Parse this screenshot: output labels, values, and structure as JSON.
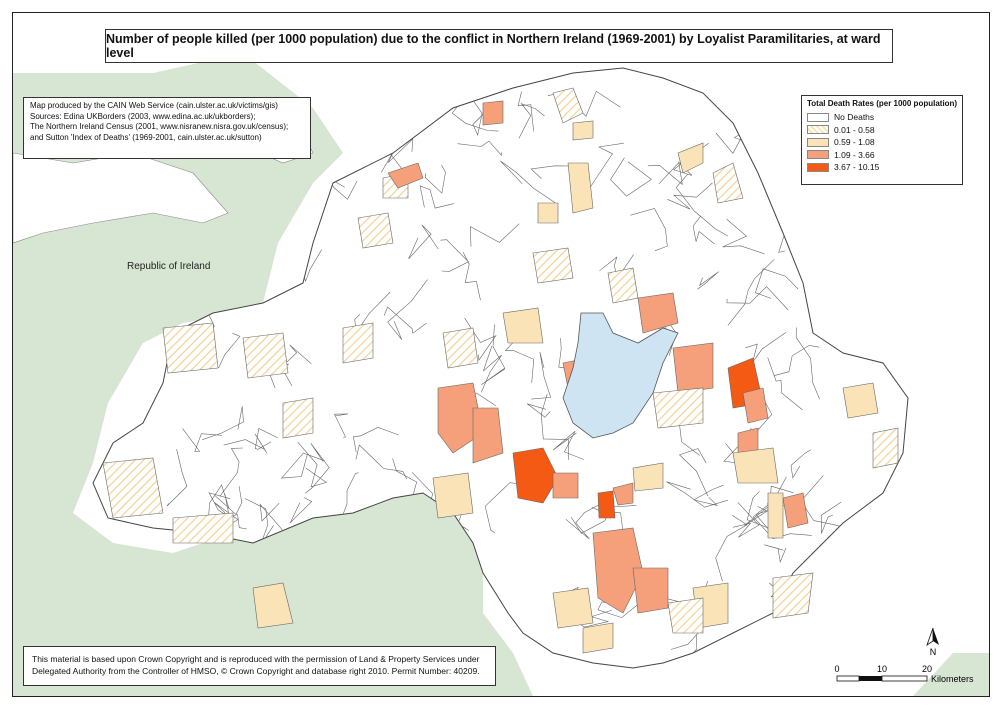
{
  "title": "Number of people killed (per 1000 population) due to the conflict in Northern Ireland (1969-2001) by Loyalist Paramilitaries, at ward level",
  "source_lines": [
    "Map produced by the CAIN Web Service (cain.ulster.ac.uk/victims/gis)",
    "Sources: Edina UKBorders (2003, www.edina.ac.uk/ukborders);",
    "The Northern Ireland Census (2001, www.nisranew.nisra.gov.uk/census);",
    "and Sutton 'Index of Deaths' (1969-2001, cain.ulster.ac.uk/sutton)"
  ],
  "legend": {
    "title": "Total Death Rates (per 1000 population)",
    "classes": [
      {
        "label": "No Deaths",
        "color": "#ffffff",
        "pattern": "none"
      },
      {
        "label": "0.01 - 0.58",
        "color": "#fbe3b8",
        "pattern": "hatch"
      },
      {
        "label": "0.59 - 1.08",
        "color": "#fbe3b8",
        "pattern": "solid"
      },
      {
        "label": "1.09 - 3.66",
        "color": "#f5a07a",
        "pattern": "solid"
      },
      {
        "label": "3.67 - 10.15",
        "color": "#f55a14",
        "pattern": "solid"
      }
    ]
  },
  "copyright_lines": [
    "This material is based upon Crown Copyright and is reproduced with the permission of Land & Property Services under",
    "Delegated Authority from the Controller of HMSO, © Crown Copyright and database right 2010. Permit Number: 40209."
  ],
  "country_label": "Republic of Ireland",
  "north_label": "N",
  "scale": {
    "ticks": [
      "0",
      "10",
      "20"
    ],
    "unit": "Kilometers"
  },
  "colors": {
    "roi_land": "#d7e6d2",
    "lake": "#cfe4f3",
    "boundary": "#555555"
  }
}
